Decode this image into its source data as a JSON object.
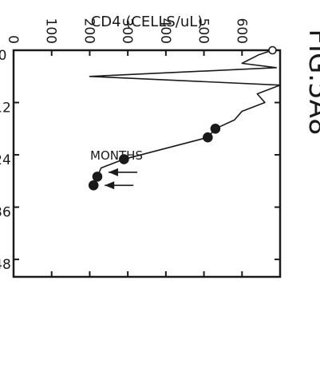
{
  "figure_label": "FIG.5A8",
  "chart_data": {
    "type": "line",
    "xlabel": "MONTHS",
    "ylabel": "CD4 (CELLS/uL)",
    "xlim": [
      0,
      52
    ],
    "ylim": [
      0,
      700
    ],
    "x_ticks": [
      0,
      12,
      24,
      36,
      48
    ],
    "y_ticks": [
      0,
      100,
      200,
      300,
      400,
      500,
      600
    ],
    "orientation": "rotated 90 degrees clockwise",
    "series": [
      {
        "line_points": [
          {
            "x": 0,
            "y": 680
          },
          {
            "x": 1,
            "y": 645
          },
          {
            "x": 3,
            "y": 600
          },
          {
            "x": 4,
            "y": 690
          },
          {
            "x": 6,
            "y": 200
          },
          {
            "x": 8,
            "y": 700
          },
          {
            "x": 10,
            "y": 640
          },
          {
            "x": 12,
            "y": 660
          },
          {
            "x": 14,
            "y": 600
          },
          {
            "x": 16,
            "y": 580
          },
          {
            "x": 18,
            "y": 530
          },
          {
            "x": 20,
            "y": 510
          },
          {
            "x": 25,
            "y": 290
          },
          {
            "x": 27,
            "y": 230
          },
          {
            "x": 29,
            "y": 220
          },
          {
            "x": 31,
            "y": 210
          }
        ],
        "markers": [
          {
            "x": 18,
            "y": 530,
            "style": "filled"
          },
          {
            "x": 20,
            "y": 510,
            "style": "filled"
          },
          {
            "x": 25,
            "y": 290,
            "style": "filled"
          },
          {
            "x": 29,
            "y": 220,
            "style": "filled"
          },
          {
            "x": 31,
            "y": 210,
            "style": "filled"
          },
          {
            "x": 0,
            "y": 680,
            "style": "open"
          }
        ],
        "arrows": [
          {
            "x": 28,
            "y": 220
          },
          {
            "x": 31,
            "y": 210
          }
        ]
      }
    ],
    "grid": false
  }
}
